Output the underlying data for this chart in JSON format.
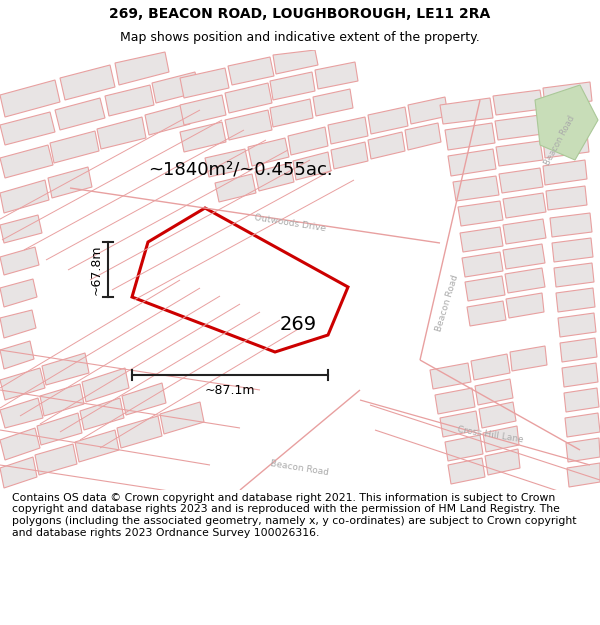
{
  "title_line1": "269, BEACON ROAD, LOUGHBOROUGH, LE11 2RA",
  "title_line2": "Map shows position and indicative extent of the property.",
  "area_text": "~1840m²/~0.455ac.",
  "width_label": "~87.1m",
  "height_label": "~67.8m",
  "property_number": "269",
  "copyright_text": "Contains OS data © Crown copyright and database right 2021. This information is subject to Crown copyright and database rights 2023 and is reproduced with the permission of HM Land Registry. The polygons (including the associated geometry, namely x, y co-ordinates) are subject to Crown copyright and database rights 2023 Ordnance Survey 100026316.",
  "map_bg": "#ffffff",
  "plot_outline_color": "#cc0000",
  "building_fill": "#e8e4e4",
  "building_stroke": "#e8a0a0",
  "road_stroke": "#e8a0a0",
  "dim_line_color": "#222222",
  "road_label_color": "#aaaaaa",
  "title_fontsize": 10,
  "subtitle_fontsize": 9,
  "copyright_fontsize": 7.8,
  "park_color": "#c8ddb8",
  "park_edge": "#aac898"
}
